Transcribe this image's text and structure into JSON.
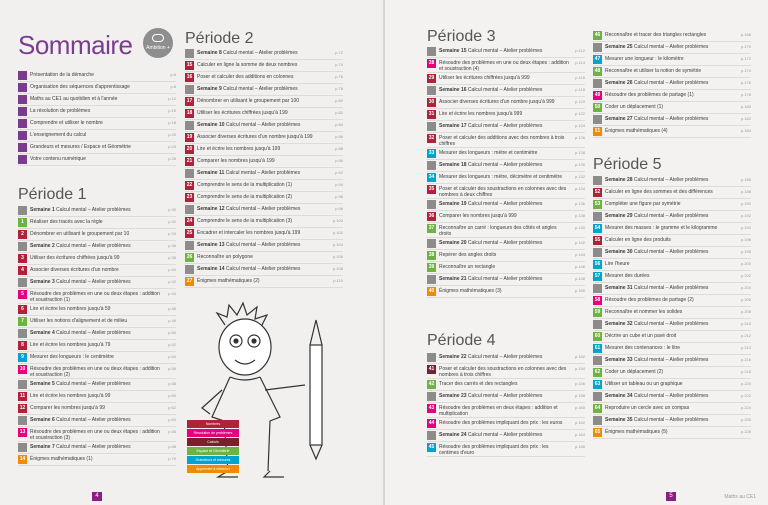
{
  "title": "Sommaire",
  "logo": "Ambition +",
  "intro": [
    {
      "text": "Présentation de la démarche",
      "page": "p.6"
    },
    {
      "text": "Organisation des séquences d'apprentissage",
      "page": "p.8"
    },
    {
      "text": "Maths au CE1 au quotidien et à l'année",
      "page": "p.12"
    },
    {
      "text": "La résolution de problèmes",
      "page": "p.15"
    },
    {
      "text": "Comprendre et utiliser le nombre",
      "page": "p.18"
    },
    {
      "text": "L'enseignement du calcul",
      "page": "p.20"
    },
    {
      "text": "Grandeurs et mesures / Espace et Géométrie",
      "page": "p.24"
    },
    {
      "text": "Votre contenu numérique",
      "page": "p.28"
    }
  ],
  "periode1": {
    "title": "Période 1",
    "rows": [
      {
        "n": "",
        "c": "grey",
        "s": "Semaine 1",
        "text": "Calcul mental – Atelier problèmes",
        "page": "p.30"
      },
      {
        "n": "1",
        "c": "green",
        "s": "",
        "text": "Réaliser des tracés avec la règle",
        "page": "p.32"
      },
      {
        "n": "2",
        "c": "red",
        "s": "",
        "text": "Dénombrer en utilisant le groupement par 10",
        "page": "p.34"
      },
      {
        "n": "",
        "c": "grey",
        "s": "Semaine 2",
        "text": "Calcul mental – Atelier problèmes",
        "page": "p.36"
      },
      {
        "n": "3",
        "c": "red",
        "s": "",
        "text": "Utiliser des écritures chiffrées jusqu'à 99",
        "page": "p.38"
      },
      {
        "n": "4",
        "c": "red",
        "s": "",
        "text": "Associer diverses écritures d'un nombre",
        "page": "p.40"
      },
      {
        "n": "",
        "c": "grey",
        "s": "Semaine 3",
        "text": "Calcul mental – Atelier problèmes",
        "page": "p.42"
      },
      {
        "n": "5",
        "c": "pink",
        "s": "",
        "text": "Résoudre des problèmes en une ou deux étapes : addition et soustraction (1)",
        "page": "p.44"
      },
      {
        "n": "6",
        "c": "red",
        "s": "",
        "text": "Lire et écrire les nombres jusqu'à 59",
        "page": "p.46"
      },
      {
        "n": "7",
        "c": "green",
        "s": "",
        "text": "Utiliser les notions d'alignement et de milieu",
        "page": "p.48"
      },
      {
        "n": "",
        "c": "grey",
        "s": "Semaine 4",
        "text": "Calcul mental – Atelier problèmes",
        "page": "p.50"
      },
      {
        "n": "8",
        "c": "red",
        "s": "",
        "text": "Lire et écrire les nombres jusqu'à 79",
        "page": "p.52"
      },
      {
        "n": "9",
        "c": "blue",
        "s": "",
        "text": "Mesurer des longueurs : le centimètre",
        "page": "p.54"
      },
      {
        "n": "10",
        "c": "pink",
        "s": "",
        "text": "Résoudre des problèmes en une ou deux étapes : addition et soustraction (2)",
        "page": "p.56"
      },
      {
        "n": "",
        "c": "grey",
        "s": "Semaine 5",
        "text": "Calcul mental – Atelier problèmes",
        "page": "p.58"
      },
      {
        "n": "11",
        "c": "red",
        "s": "",
        "text": "Lire et écrire les nombres jusqu'à 99",
        "page": "p.60"
      },
      {
        "n": "12",
        "c": "red",
        "s": "",
        "text": "Comparer les nombres jusqu'à 99",
        "page": "p.62"
      },
      {
        "n": "",
        "c": "grey",
        "s": "Semaine 6",
        "text": "Calcul mental – Atelier problèmes",
        "page": "p.64"
      },
      {
        "n": "13",
        "c": "pink",
        "s": "",
        "text": "Résoudre des problèmes en une ou deux étapes : addition et soustraction (3)",
        "page": "p.66"
      },
      {
        "n": "",
        "c": "grey",
        "s": "Semaine 7",
        "text": "Calcul mental – Atelier problèmes",
        "page": "p.68"
      },
      {
        "n": "14",
        "c": "orange",
        "s": "",
        "text": "Énigmes mathématiques (1)",
        "page": "p.70"
      }
    ]
  },
  "periode2": {
    "title": "Période 2",
    "rows": [
      {
        "n": "",
        "c": "grey",
        "s": "Semaine 8",
        "text": "Calcul mental – Atelier problèmes",
        "page": "p.72"
      },
      {
        "n": "15",
        "c": "red",
        "s": "",
        "text": "Calculer en ligne la somme de deux nombres",
        "page": "p.74"
      },
      {
        "n": "16",
        "c": "red",
        "s": "",
        "text": "Poser et calculer des additions en colonnes",
        "page": "p.76"
      },
      {
        "n": "",
        "c": "grey",
        "s": "Semaine 9",
        "text": "Calcul mental – Atelier problèmes",
        "page": "p.78"
      },
      {
        "n": "17",
        "c": "red",
        "s": "",
        "text": "Dénombrer en utilisant le groupement par 100",
        "page": "p.80"
      },
      {
        "n": "18",
        "c": "red",
        "s": "",
        "text": "Utiliser les écritures chiffrées jusqu'à 199",
        "page": "p.82"
      },
      {
        "n": "",
        "c": "grey",
        "s": "Semaine 10",
        "text": "Calcul mental – Atelier problèmes",
        "page": "p.84"
      },
      {
        "n": "19",
        "c": "red",
        "s": "",
        "text": "Associer diverses écritures d'un nombre jusqu'à 199",
        "page": "p.86"
      },
      {
        "n": "20",
        "c": "red",
        "s": "",
        "text": "Lire et écrire les nombres jusqu'à 199",
        "page": "p.88"
      },
      {
        "n": "21",
        "c": "red",
        "s": "",
        "text": "Comparer les nombres jusqu'à 199",
        "page": "p.90"
      },
      {
        "n": "",
        "c": "grey",
        "s": "Semaine 11",
        "text": "Calcul mental – Atelier problèmes",
        "page": "p.92"
      },
      {
        "n": "22",
        "c": "red",
        "s": "",
        "text": "Comprendre le sens de la multiplication (1)",
        "page": "p.94"
      },
      {
        "n": "23",
        "c": "red",
        "s": "",
        "text": "Comprendre le sens de la multiplication (2)",
        "page": "p.96"
      },
      {
        "n": "",
        "c": "grey",
        "s": "Semaine 12",
        "text": "Calcul mental – Atelier problèmes",
        "page": "p.98"
      },
      {
        "n": "24",
        "c": "red",
        "s": "",
        "text": "Comprendre le sens de la multiplication (3)",
        "page": "p.100"
      },
      {
        "n": "25",
        "c": "red",
        "s": "",
        "text": "Encadrer et intercaler les nombres jusqu'à 199",
        "page": "p.102"
      },
      {
        "n": "",
        "c": "grey",
        "s": "Semaine 13",
        "text": "Calcul mental – Atelier problèmes",
        "page": "p.104"
      },
      {
        "n": "26",
        "c": "green",
        "s": "",
        "text": "Reconnaître un polygone",
        "page": "p.106"
      },
      {
        "n": "",
        "c": "grey",
        "s": "Semaine 14",
        "text": "Calcul mental – Atelier problèmes",
        "page": "p.108"
      },
      {
        "n": "27",
        "c": "orange",
        "s": "",
        "text": "Énigmes mathématiques (2)",
        "page": "p.110"
      }
    ]
  },
  "periode3": {
    "title": "Période 3",
    "rows": [
      {
        "n": "",
        "c": "grey",
        "s": "Semaine 15",
        "text": "Calcul mental – Atelier problèmes",
        "page": "p.112"
      },
      {
        "n": "28",
        "c": "pink",
        "s": "",
        "text": "Résoudre des problèmes en une ou deux étapes : addition et soustraction (4)",
        "page": "p.114"
      },
      {
        "n": "29",
        "c": "red",
        "s": "",
        "text": "Utiliser les écritures chiffrées jusqu'à 999",
        "page": "p.116"
      },
      {
        "n": "",
        "c": "grey",
        "s": "Semaine 16",
        "text": "Calcul mental – Atelier problèmes",
        "page": "p.118"
      },
      {
        "n": "30",
        "c": "red",
        "s": "",
        "text": "Associer diverses écritures d'un nombre jusqu'à 999",
        "page": "p.120"
      },
      {
        "n": "31",
        "c": "red",
        "s": "",
        "text": "Lire et écrire les nombres jusqu'à 999",
        "page": "p.122"
      },
      {
        "n": "",
        "c": "grey",
        "s": "Semaine 17",
        "text": "Calcul mental – Atelier problèmes",
        "page": "p.124"
      },
      {
        "n": "32",
        "c": "red",
        "s": "",
        "text": "Poser et calculer des additions avec des nombres à trois chiffres",
        "page": "p.126"
      },
      {
        "n": "33",
        "c": "blue",
        "s": "",
        "text": "Mesurer des longueurs : mètre et centimètre",
        "page": "p.128"
      },
      {
        "n": "",
        "c": "grey",
        "s": "Semaine 18",
        "text": "Calcul mental – Atelier problèmes",
        "page": "p.130"
      },
      {
        "n": "34",
        "c": "blue",
        "s": "",
        "text": "Mesurer des longueurs : mètre, décimètre et centimètre",
        "page": "p.132"
      },
      {
        "n": "35",
        "c": "red",
        "s": "",
        "text": "Poser et calculer des soustractions en colonnes avec des nombres à deux chiffres",
        "page": "p.134"
      },
      {
        "n": "",
        "c": "grey",
        "s": "Semaine 19",
        "text": "Calcul mental – Atelier problèmes",
        "page": "p.136"
      },
      {
        "n": "36",
        "c": "red",
        "s": "",
        "text": "Comparer les nombres jusqu'à 999",
        "page": "p.138"
      },
      {
        "n": "37",
        "c": "green",
        "s": "",
        "text": "Reconnaître un carré : longueurs des côtés et angles droits",
        "page": "p.140"
      },
      {
        "n": "",
        "c": "grey",
        "s": "Semaine 20",
        "text": "Calcul mental – Atelier problèmes",
        "page": "p.142"
      },
      {
        "n": "38",
        "c": "green",
        "s": "",
        "text": "Repérer des angles droits",
        "page": "p.144"
      },
      {
        "n": "39",
        "c": "green",
        "s": "",
        "text": "Reconnaître un rectangle",
        "page": "p.146"
      },
      {
        "n": "",
        "c": "grey",
        "s": "Semaine 21",
        "text": "Calcul mental – Atelier problèmes",
        "page": "p.148"
      },
      {
        "n": "40",
        "c": "orange",
        "s": "",
        "text": "Énigmes mathématiques (3)",
        "page": "p.150"
      }
    ]
  },
  "periode4": {
    "title": "Période 4",
    "rows": [
      {
        "n": "",
        "c": "grey",
        "s": "Semaine 22",
        "text": "Calcul mental – Atelier problèmes",
        "page": "p.152"
      },
      {
        "n": "41",
        "c": "dred",
        "s": "",
        "text": "Poser et calculer des soustractions en colonnes avec des nombres à trois chiffres",
        "page": "p.154"
      },
      {
        "n": "42",
        "c": "green",
        "s": "",
        "text": "Tracer des carrés et des rectangles",
        "page": "p.156"
      },
      {
        "n": "",
        "c": "grey",
        "s": "Semaine 23",
        "text": "Calcul mental – Atelier problèmes",
        "page": "p.158"
      },
      {
        "n": "43",
        "c": "pink",
        "s": "",
        "text": "Résoudre des problèmes en deux étapes : addition et multiplication",
        "page": "p.160"
      },
      {
        "n": "44",
        "c": "pink",
        "s": "",
        "text": "Résoudre des problèmes impliquant des prix : les euros",
        "page": "p.162"
      },
      {
        "n": "",
        "c": "grey",
        "s": "Semaine 24",
        "text": "Calcul mental – Atelier problèmes",
        "page": "p.164"
      },
      {
        "n": "45",
        "c": "blue",
        "s": "",
        "text": "Résoudre des problèmes impliquant des prix : les centimes d'euro",
        "page": "p.166"
      }
    ]
  },
  "col4a": [
    {
      "n": "46",
      "c": "green",
      "s": "",
      "text": "Reconnaître et tracer des triangles rectangles",
      "page": "p.168"
    },
    {
      "n": "",
      "c": "grey",
      "s": "Semaine 25",
      "text": "Calcul mental – Atelier problèmes",
      "page": "p.170"
    },
    {
      "n": "47",
      "c": "blue",
      "s": "",
      "text": "Mesurer une longueur : le kilomètre",
      "page": "p.172"
    },
    {
      "n": "48",
      "c": "green",
      "s": "",
      "text": "Reconnaître et utiliser la notion de symétrie",
      "page": "p.174"
    },
    {
      "n": "",
      "c": "grey",
      "s": "Semaine 26",
      "text": "Calcul mental – Atelier problèmes",
      "page": "p.176"
    },
    {
      "n": "49",
      "c": "pink",
      "s": "",
      "text": "Résoudre des problèmes de partage (1)",
      "page": "p.178"
    },
    {
      "n": "50",
      "c": "green",
      "s": "",
      "text": "Coder un déplacement (1)",
      "page": "p.180"
    },
    {
      "n": "",
      "c": "grey",
      "s": "Semaine 27",
      "text": "Calcul mental – Atelier problèmes",
      "page": "p.182"
    },
    {
      "n": "51",
      "c": "orange",
      "s": "",
      "text": "Énigmes mathématiques (4)",
      "page": "p.184"
    }
  ],
  "periode5": {
    "title": "Période 5",
    "rows": [
      {
        "n": "",
        "c": "grey",
        "s": "Semaine 28",
        "text": "Calcul mental – Atelier problèmes",
        "page": "p.186"
      },
      {
        "n": "52",
        "c": "red",
        "s": "",
        "text": "Calculer en ligne des sommes et des différences",
        "page": "p.188"
      },
      {
        "n": "53",
        "c": "green",
        "s": "",
        "text": "Compléter une figure par symétrie",
        "page": "p.190"
      },
      {
        "n": "",
        "c": "grey",
        "s": "Semaine 29",
        "text": "Calcul mental – Atelier problèmes",
        "page": "p.192"
      },
      {
        "n": "54",
        "c": "blue",
        "s": "",
        "text": "Mesurer des masses : le gramme et le kilogramme",
        "page": "p.194"
      },
      {
        "n": "55",
        "c": "red",
        "s": "",
        "text": "Calculer en ligne des produits",
        "page": "p.196"
      },
      {
        "n": "",
        "c": "grey",
        "s": "Semaine 30",
        "text": "Calcul mental – Atelier problèmes",
        "page": "p.198"
      },
      {
        "n": "56",
        "c": "blue",
        "s": "",
        "text": "Lire l'heure",
        "page": "p.200"
      },
      {
        "n": "57",
        "c": "blue",
        "s": "",
        "text": "Mesurer des durées",
        "page": "p.202"
      },
      {
        "n": "",
        "c": "grey",
        "s": "Semaine 31",
        "text": "Calcul mental – Atelier problèmes",
        "page": "p.204"
      },
      {
        "n": "58",
        "c": "pink",
        "s": "",
        "text": "Résoudre des problèmes de partage (2)",
        "page": "p.206"
      },
      {
        "n": "59",
        "c": "green",
        "s": "",
        "text": "Reconnaître et nommer les solides",
        "page": "p.208"
      },
      {
        "n": "",
        "c": "grey",
        "s": "Semaine 32",
        "text": "Calcul mental – Atelier problèmes",
        "page": "p.210"
      },
      {
        "n": "60",
        "c": "green",
        "s": "",
        "text": "Décrire un cube et un pavé droit",
        "page": "p.212"
      },
      {
        "n": "61",
        "c": "blue",
        "s": "",
        "text": "Mesurer des contenances : le litre",
        "page": "p.214"
      },
      {
        "n": "",
        "c": "grey",
        "s": "Semaine 33",
        "text": "Calcul mental – Atelier problèmes",
        "page": "p.216"
      },
      {
        "n": "62",
        "c": "green",
        "s": "",
        "text": "Coder un déplacement (2)",
        "page": "p.218"
      },
      {
        "n": "63",
        "c": "blue",
        "s": "",
        "text": "Utiliser un tableau ou un graphique",
        "page": "p.220"
      },
      {
        "n": "",
        "c": "grey",
        "s": "Semaine 34",
        "text": "Calcul mental – Atelier problèmes",
        "page": "p.222"
      },
      {
        "n": "64",
        "c": "green",
        "s": "",
        "text": "Reproduire un cercle avec un compas",
        "page": "p.224"
      },
      {
        "n": "",
        "c": "grey",
        "s": "Semaine 35",
        "text": "Calcul mental – Atelier problèmes",
        "page": "p.226"
      },
      {
        "n": "65",
        "c": "orange",
        "s": "",
        "text": "Énigmes mathématiques (5)",
        "page": "p.228"
      }
    ]
  },
  "legend": [
    "Nombres",
    "Résolution de problèmes",
    "Calculs",
    "Espace et Géométrie",
    "Grandeurs et mesures",
    "Apprendre à chercher"
  ],
  "legend_colors": [
    "#b0223a",
    "#e5007d",
    "#7b1e2f",
    "#6db33f",
    "#00a4cf",
    "#f08a00"
  ],
  "page_left": "4",
  "page_right": "5",
  "footer": "Maths au CE1"
}
